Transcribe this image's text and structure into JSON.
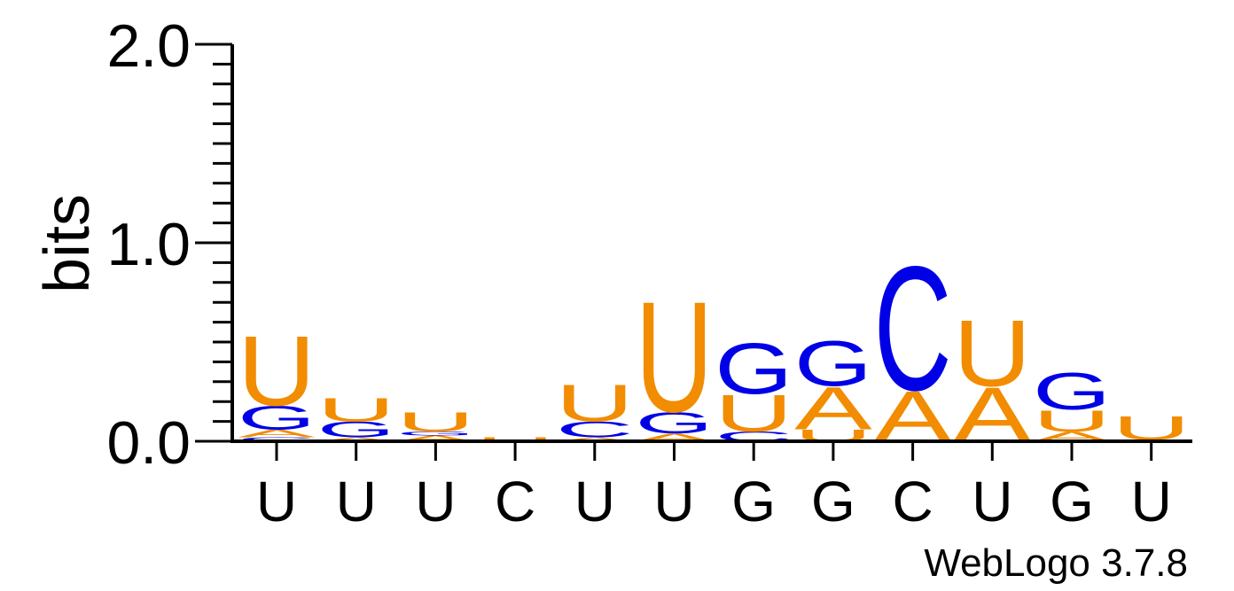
{
  "chart_data": {
    "type": "sequence-logo",
    "title": "",
    "ylabel": "bits",
    "ylim": [
      0,
      2
    ],
    "yticks": [
      "0.0",
      "1.0",
      "2.0"
    ],
    "colors": {
      "A": "#f28c00",
      "U": "#f28c00",
      "G": "#0000e6",
      "C": "#0000e6"
    },
    "positions": [
      {
        "label": "U",
        "stack": [
          {
            "letter": "C",
            "bits": 0.02
          },
          {
            "letter": "A",
            "bits": 0.04
          },
          {
            "letter": "G",
            "bits": 0.12
          },
          {
            "letter": "U",
            "bits": 0.36
          }
        ]
      },
      {
        "label": "U",
        "stack": [
          {
            "letter": "A",
            "bits": 0.02
          },
          {
            "letter": "G",
            "bits": 0.08
          },
          {
            "letter": "U",
            "bits": 0.12
          }
        ]
      },
      {
        "label": "U",
        "stack": [
          {
            "letter": "A",
            "bits": 0.03
          },
          {
            "letter": "G",
            "bits": 0.02
          },
          {
            "letter": "U",
            "bits": 0.1
          }
        ]
      },
      {
        "label": "C",
        "stack": [
          {
            "letter": "U",
            "bits": 0.02
          }
        ]
      },
      {
        "label": "U",
        "stack": [
          {
            "letter": "A",
            "bits": 0.02
          },
          {
            "letter": "C",
            "bits": 0.08
          },
          {
            "letter": "U",
            "bits": 0.19
          }
        ]
      },
      {
        "label": "U",
        "stack": [
          {
            "letter": "A",
            "bits": 0.04
          },
          {
            "letter": "G",
            "bits": 0.11
          },
          {
            "letter": "U",
            "bits": 0.57
          }
        ]
      },
      {
        "label": "G",
        "stack": [
          {
            "letter": "C",
            "bits": 0.05
          },
          {
            "letter": "U",
            "bits": 0.19
          },
          {
            "letter": "G",
            "bits": 0.26
          }
        ]
      },
      {
        "label": "G",
        "stack": [
          {
            "letter": "U",
            "bits": 0.06
          },
          {
            "letter": "A",
            "bits": 0.22
          },
          {
            "letter": "G",
            "bits": 0.23
          }
        ]
      },
      {
        "label": "C",
        "stack": [
          {
            "letter": "A",
            "bits": 0.26
          },
          {
            "letter": "C",
            "bits": 0.64
          }
        ]
      },
      {
        "label": "U",
        "stack": [
          {
            "letter": "A",
            "bits": 0.28
          },
          {
            "letter": "U",
            "bits": 0.34
          }
        ]
      },
      {
        "label": "G",
        "stack": [
          {
            "letter": "A",
            "bits": 0.05
          },
          {
            "letter": "U",
            "bits": 0.11
          },
          {
            "letter": "G",
            "bits": 0.19
          }
        ]
      },
      {
        "label": "U",
        "stack": [
          {
            "letter": "A",
            "bits": 0.01
          },
          {
            "letter": "U",
            "bits": 0.12
          }
        ]
      }
    ],
    "credit": "WebLogo 3.7.8"
  }
}
